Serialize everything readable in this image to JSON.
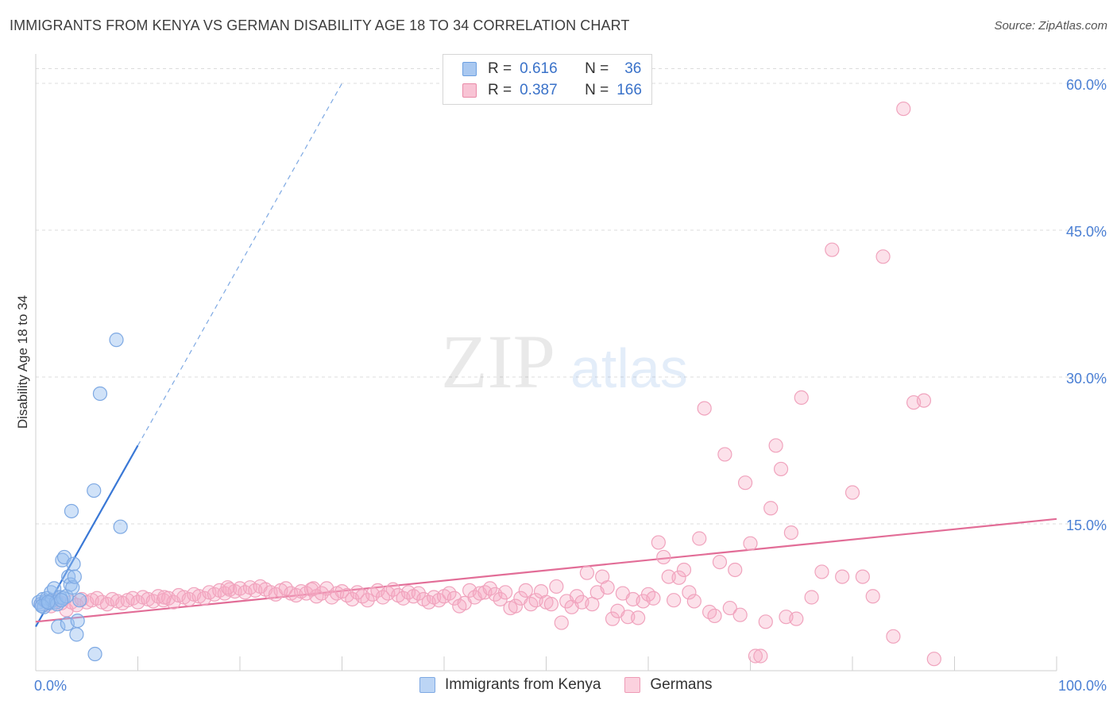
{
  "header": {
    "title": "IMMIGRANTS FROM KENYA VS GERMAN DISABILITY AGE 18 TO 34 CORRELATION CHART",
    "source": "Source: ZipAtlas.com"
  },
  "watermark": {
    "zip": "ZIP",
    "atlas": "atlas"
  },
  "legend": {
    "rows": [
      {
        "r_label": "R =",
        "r_value": "0.616",
        "n_label": "N =",
        "n_value": "36",
        "color": "#a9c8f0",
        "border": "#6b9fe0"
      },
      {
        "r_label": "R =",
        "r_value": "0.387",
        "n_label": "N =",
        "n_value": "166",
        "color": "#f8c3d4",
        "border": "#e98aa8"
      }
    ]
  },
  "bottom_legend": {
    "kenya": "Immigrants from Kenya",
    "germans": "Germans"
  },
  "chart_data": {
    "type": "scatter",
    "ylabel": "Disability Age 18 to 34",
    "xlim": [
      0,
      100
    ],
    "ylim": [
      0,
      63
    ],
    "yticks": [
      {
        "value": 15,
        "label": "15.0%"
      },
      {
        "value": 30,
        "label": "30.0%"
      },
      {
        "value": 45,
        "label": "45.0%"
      },
      {
        "value": 60,
        "label": "60.0%"
      }
    ],
    "xtick_labels": {
      "min": "0.0%",
      "max": "100.0%"
    },
    "colors": {
      "kenya": "#3a78d6",
      "germans": "#e26d97",
      "kenya_fill": "rgba(150,190,240,0.45)",
      "germans_fill": "rgba(245,170,195,0.35)"
    },
    "series": [
      {
        "name": "Immigrants from Kenya",
        "points": [
          [
            0.3,
            7.0
          ],
          [
            0.5,
            6.8
          ],
          [
            0.7,
            7.3
          ],
          [
            0.8,
            6.5
          ],
          [
            1.0,
            7.1
          ],
          [
            1.1,
            7.4
          ],
          [
            1.3,
            6.9
          ],
          [
            1.5,
            8.0
          ],
          [
            1.6,
            7.2
          ],
          [
            1.8,
            8.4
          ],
          [
            2.0,
            7.0
          ],
          [
            2.1,
            6.8
          ],
          [
            2.2,
            4.5
          ],
          [
            2.4,
            7.5
          ],
          [
            2.6,
            11.3
          ],
          [
            2.7,
            7.4
          ],
          [
            2.8,
            11.6
          ],
          [
            3.0,
            7.6
          ],
          [
            3.1,
            4.8
          ],
          [
            3.2,
            9.6
          ],
          [
            3.4,
            8.8
          ],
          [
            3.5,
            16.3
          ],
          [
            3.6,
            8.5
          ],
          [
            3.7,
            10.9
          ],
          [
            3.8,
            9.6
          ],
          [
            4.0,
            3.7
          ],
          [
            4.1,
            5.1
          ],
          [
            4.3,
            7.2
          ],
          [
            5.7,
            18.4
          ],
          [
            5.8,
            1.7
          ],
          [
            6.3,
            28.3
          ],
          [
            7.9,
            33.8
          ],
          [
            8.3,
            14.7
          ],
          [
            0.6,
            6.6
          ],
          [
            1.2,
            7.0
          ],
          [
            2.5,
            7.2
          ]
        ]
      },
      {
        "name": "Germans",
        "points": [
          [
            0.5,
            6.8
          ],
          [
            1.0,
            7.1
          ],
          [
            1.5,
            6.6
          ],
          [
            2.0,
            7.2
          ],
          [
            2.5,
            6.9
          ],
          [
            3.0,
            6.2
          ],
          [
            3.5,
            7.0
          ],
          [
            4.0,
            6.7
          ],
          [
            4.5,
            7.3
          ],
          [
            5.0,
            7.0
          ],
          [
            5.5,
            7.2
          ],
          [
            6.0,
            7.4
          ],
          [
            6.5,
            7.0
          ],
          [
            7.0,
            6.8
          ],
          [
            7.5,
            7.3
          ],
          [
            8.0,
            7.1
          ],
          [
            8.5,
            6.9
          ],
          [
            9.0,
            7.2
          ],
          [
            9.5,
            7.4
          ],
          [
            10.0,
            7.0
          ],
          [
            10.5,
            7.5
          ],
          [
            11.0,
            7.3
          ],
          [
            11.5,
            7.1
          ],
          [
            12.0,
            7.6
          ],
          [
            12.5,
            7.2
          ],
          [
            13.0,
            7.4
          ],
          [
            13.5,
            7.0
          ],
          [
            14.0,
            7.7
          ],
          [
            14.5,
            7.5
          ],
          [
            15.0,
            7.3
          ],
          [
            15.5,
            7.8
          ],
          [
            16.0,
            7.6
          ],
          [
            16.5,
            7.4
          ],
          [
            17.0,
            8.0
          ],
          [
            17.5,
            7.8
          ],
          [
            18.0,
            8.2
          ],
          [
            18.5,
            7.9
          ],
          [
            19.0,
            8.3
          ],
          [
            19.5,
            8.1
          ],
          [
            20.0,
            8.4
          ],
          [
            20.5,
            8.0
          ],
          [
            21.0,
            8.5
          ],
          [
            21.5,
            8.2
          ],
          [
            22.0,
            8.6
          ],
          [
            22.5,
            8.3
          ],
          [
            23.0,
            8.0
          ],
          [
            23.5,
            7.8
          ],
          [
            24.0,
            8.2
          ],
          [
            24.5,
            8.4
          ],
          [
            25.0,
            7.9
          ],
          [
            25.5,
            7.7
          ],
          [
            26.0,
            8.1
          ],
          [
            26.5,
            7.9
          ],
          [
            27.0,
            8.3
          ],
          [
            27.5,
            7.6
          ],
          [
            28.0,
            7.9
          ],
          [
            28.5,
            8.4
          ],
          [
            29.0,
            7.5
          ],
          [
            29.5,
            7.9
          ],
          [
            30.0,
            8.1
          ],
          [
            30.5,
            7.7
          ],
          [
            31.0,
            7.3
          ],
          [
            31.5,
            8.0
          ],
          [
            32.0,
            7.6
          ],
          [
            32.5,
            7.2
          ],
          [
            33.0,
            7.8
          ],
          [
            33.5,
            8.2
          ],
          [
            34.0,
            7.5
          ],
          [
            34.5,
            7.9
          ],
          [
            35.0,
            8.3
          ],
          [
            35.5,
            7.7
          ],
          [
            36.0,
            7.4
          ],
          [
            36.5,
            8.0
          ],
          [
            37.0,
            7.6
          ],
          [
            37.5,
            7.9
          ],
          [
            38.0,
            7.3
          ],
          [
            38.5,
            7.0
          ],
          [
            39.0,
            7.5
          ],
          [
            39.5,
            7.2
          ],
          [
            40.0,
            7.6
          ],
          [
            40.5,
            7.9
          ],
          [
            41.0,
            7.4
          ],
          [
            41.5,
            6.6
          ],
          [
            42.0,
            6.9
          ],
          [
            42.5,
            8.2
          ],
          [
            43.0,
            7.5
          ],
          [
            43.5,
            7.9
          ],
          [
            44.0,
            8.0
          ],
          [
            44.5,
            8.4
          ],
          [
            45.0,
            7.8
          ],
          [
            45.5,
            7.3
          ],
          [
            46.0,
            8.0
          ],
          [
            46.5,
            6.4
          ],
          [
            47.0,
            6.6
          ],
          [
            47.5,
            7.4
          ],
          [
            48.0,
            8.2
          ],
          [
            48.5,
            6.8
          ],
          [
            49.0,
            7.2
          ],
          [
            49.5,
            8.1
          ],
          [
            50.0,
            7.0
          ],
          [
            50.5,
            6.8
          ],
          [
            51.0,
            8.6
          ],
          [
            51.5,
            4.9
          ],
          [
            52.0,
            7.1
          ],
          [
            52.5,
            6.5
          ],
          [
            53.0,
            7.6
          ],
          [
            53.5,
            7.0
          ],
          [
            54.0,
            10.0
          ],
          [
            54.5,
            6.8
          ],
          [
            55.0,
            8.0
          ],
          [
            55.5,
            9.6
          ],
          [
            56.0,
            8.5
          ],
          [
            56.5,
            5.3
          ],
          [
            57.0,
            6.1
          ],
          [
            57.5,
            7.9
          ],
          [
            58.0,
            5.5
          ],
          [
            58.5,
            7.3
          ],
          [
            59.0,
            5.4
          ],
          [
            59.5,
            7.1
          ],
          [
            60.0,
            7.8
          ],
          [
            60.5,
            7.4
          ],
          [
            61.0,
            13.1
          ],
          [
            61.5,
            11.6
          ],
          [
            62.0,
            9.6
          ],
          [
            62.5,
            7.2
          ],
          [
            63.0,
            9.5
          ],
          [
            63.5,
            10.3
          ],
          [
            64.0,
            8.0
          ],
          [
            64.5,
            7.1
          ],
          [
            65.0,
            13.5
          ],
          [
            65.5,
            26.8
          ],
          [
            66.0,
            6.0
          ],
          [
            66.5,
            5.6
          ],
          [
            67.0,
            11.1
          ],
          [
            67.5,
            22.1
          ],
          [
            68.0,
            6.4
          ],
          [
            68.5,
            10.3
          ],
          [
            69.0,
            5.7
          ],
          [
            69.5,
            19.2
          ],
          [
            70.0,
            13.0
          ],
          [
            70.5,
            1.5
          ],
          [
            71.0,
            1.5
          ],
          [
            71.5,
            5.0
          ],
          [
            72.0,
            16.6
          ],
          [
            72.5,
            23.0
          ],
          [
            73.0,
            20.6
          ],
          [
            73.5,
            5.5
          ],
          [
            74.0,
            14.1
          ],
          [
            74.5,
            5.3
          ],
          [
            75.0,
            27.9
          ],
          [
            76.0,
            7.5
          ],
          [
            77.0,
            10.1
          ],
          [
            78.0,
            43.0
          ],
          [
            79.0,
            9.6
          ],
          [
            80.0,
            18.2
          ],
          [
            81.0,
            9.6
          ],
          [
            82.0,
            7.6
          ],
          [
            83.0,
            42.3
          ],
          [
            84.0,
            3.5
          ],
          [
            85.0,
            57.4
          ],
          [
            86.0,
            27.4
          ],
          [
            87.0,
            27.6
          ],
          [
            88.0,
            1.2
          ],
          [
            12.6,
            7.5
          ],
          [
            18.8,
            8.5
          ],
          [
            27.2,
            8.4
          ]
        ]
      }
    ],
    "trendlines": [
      {
        "series": "Immigrants from Kenya",
        "x0": 0,
        "y0": 4.5,
        "x1": 10,
        "y1": 23.0,
        "dashed_to_x": 30,
        "dashed_to_y": 60.0
      },
      {
        "series": "Germans",
        "x0": 0,
        "y0": 5.0,
        "x1": 100,
        "y1": 15.5
      }
    ]
  }
}
